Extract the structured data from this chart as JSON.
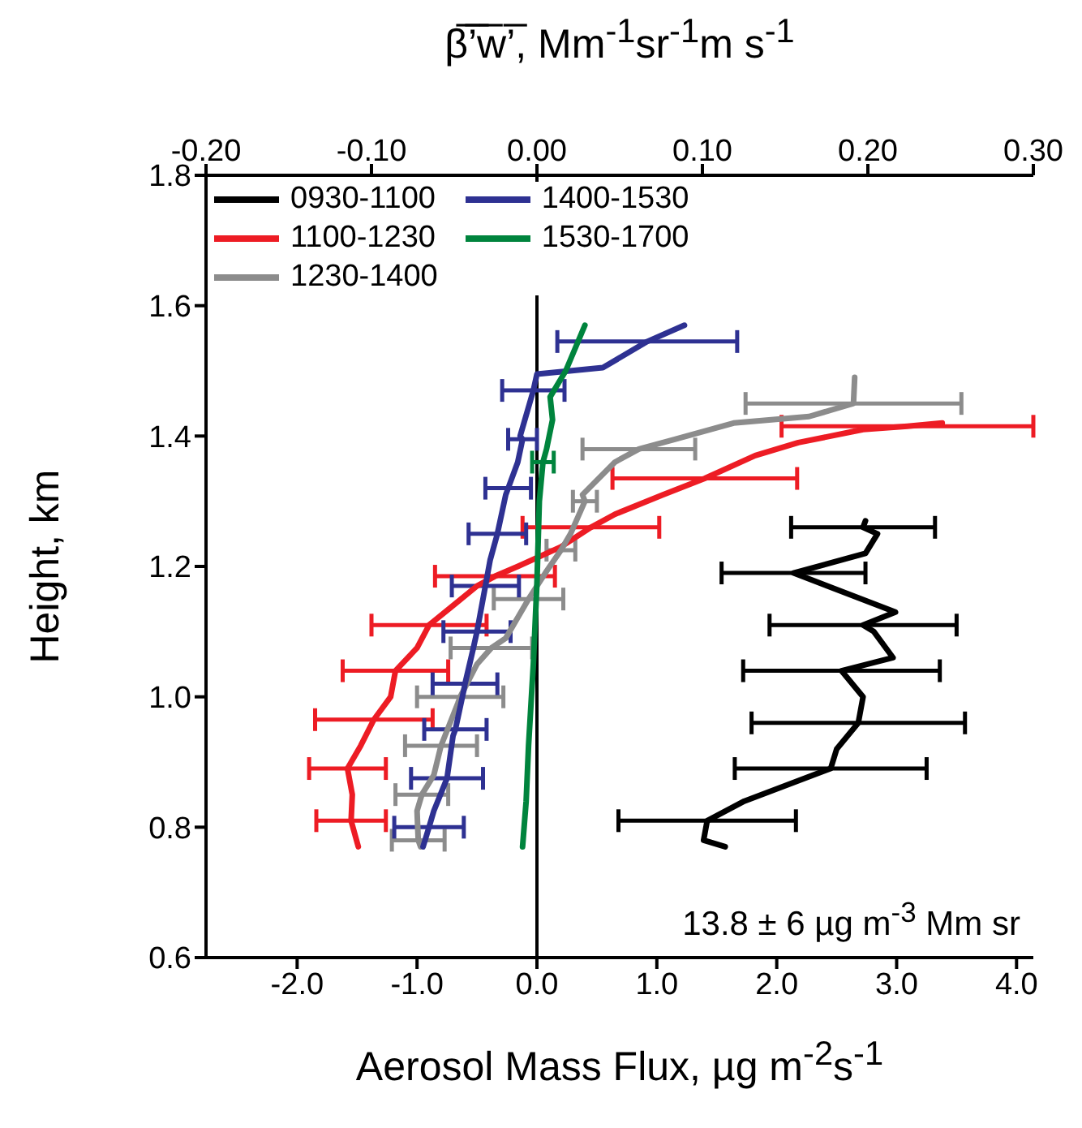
{
  "chart_data": {
    "type": "line",
    "xlabel": "Aerosol Mass Flux, µg m$^{-2}$s$^{-1}$",
    "x2label": "β̅’̅w̅’̅, Mm$^{-1}$sr$^{-1}$m s$^{-1}$",
    "ylabel": "Height, km",
    "annotations": [
      "13.8 ± 6 µg m$^{-3}$ Mm sr"
    ],
    "xlim": [
      -2.76,
      4.14
    ],
    "xticks": [
      {
        "value": -2,
        "label": "-2.0"
      },
      {
        "value": -1,
        "label": "-1.0"
      },
      {
        "value": 0,
        "label": "0.0"
      },
      {
        "value": 1,
        "label": "1.0"
      },
      {
        "value": 2,
        "label": "2.0"
      },
      {
        "value": 3,
        "label": "3.0"
      },
      {
        "value": 4,
        "label": "4.0"
      }
    ],
    "x2lim": [
      -0.2,
      0.3
    ],
    "x2ticks": [
      {
        "value": -0.2,
        "label": "-0.20"
      },
      {
        "value": -0.1,
        "label": "-0.10"
      },
      {
        "value": 0,
        "label": "0.00"
      },
      {
        "value": 0.1,
        "label": "0.10"
      },
      {
        "value": 0.2,
        "label": "0.20"
      },
      {
        "value": 0.3,
        "label": "0.30"
      }
    ],
    "ylim": [
      0.6,
      1.8
    ],
    "yticks": [
      {
        "value": 0.6,
        "label": "0.6"
      },
      {
        "value": 0.8,
        "label": "0.8"
      },
      {
        "value": 1,
        "label": "1.0"
      },
      {
        "value": 1.2,
        "label": "1.2"
      },
      {
        "value": 1.4,
        "label": "1.4"
      },
      {
        "value": 1.6,
        "label": "1.6"
      },
      {
        "value": 1.8,
        "label": "1.8"
      }
    ],
    "ref_lines": [
      {
        "axis": "x",
        "value": 0,
        "color": "#000000"
      }
    ],
    "grid": false,
    "legend": "top left",
    "marker": "none",
    "line_style": "solid",
    "series": [
      {
        "name": "0930-1100",
        "color": "#000000",
        "values": [
          0.77,
          0.78,
          0.81,
          0.84,
          0.89,
          0.92,
          0.96,
          1.0,
          1.04,
          1.06,
          1.1,
          1.11,
          1.13,
          1.19,
          1.22,
          1.25,
          1.26,
          1.27
        ],
        "x": [
          1.57,
          1.39,
          1.42,
          1.73,
          2.45,
          2.5,
          2.68,
          2.72,
          2.54,
          2.97,
          2.81,
          2.72,
          2.99,
          2.14,
          2.74,
          2.84,
          2.72,
          2.74
        ],
        "xerrors": [
          null,
          null,
          0.74,
          null,
          0.8,
          null,
          0.89,
          null,
          0.82,
          null,
          null,
          0.78,
          null,
          0.6,
          null,
          null,
          0.6,
          null
        ]
      },
      {
        "name": "1100-1230",
        "color": "#ed1c24",
        "values": [
          0.77,
          0.81,
          0.85,
          0.89,
          0.925,
          0.965,
          1.0,
          1.04,
          1.075,
          1.11,
          1.14,
          1.17,
          1.185,
          1.2,
          1.23,
          1.26,
          1.28,
          1.31,
          1.335,
          1.37,
          1.39,
          1.41,
          1.415,
          1.42
        ],
        "x": [
          -1.49,
          -1.55,
          -1.54,
          -1.58,
          -1.47,
          -1.36,
          -1.22,
          -1.18,
          -1.0,
          -0.9,
          -0.7,
          -0.5,
          -0.35,
          -0.16,
          0.2,
          0.45,
          0.65,
          1.05,
          1.4,
          1.82,
          2.18,
          2.72,
          3.09,
          3.38
        ],
        "xerrors": [
          null,
          0.29,
          null,
          0.32,
          null,
          0.49,
          null,
          0.44,
          null,
          0.48,
          null,
          null,
          0.5,
          null,
          null,
          0.57,
          null,
          null,
          0.77,
          null,
          null,
          null,
          1.05,
          null
        ]
      },
      {
        "name": "1230-1400",
        "color": "#8c8c8c",
        "values": [
          0.77,
          0.78,
          0.825,
          0.85,
          0.88,
          0.925,
          0.99,
          1.0,
          1.05,
          1.075,
          1.09,
          1.15,
          1.19,
          1.225,
          1.25,
          1.3,
          1.31,
          1.36,
          1.38,
          1.395,
          1.42,
          1.43,
          1.45,
          1.49
        ],
        "x": [
          -0.97,
          -0.99,
          -1.0,
          -0.96,
          -0.86,
          -0.8,
          -0.66,
          -0.64,
          -0.5,
          -0.38,
          -0.26,
          -0.07,
          0.07,
          0.2,
          0.28,
          0.4,
          0.38,
          0.65,
          0.85,
          1.15,
          1.64,
          2.27,
          2.64,
          2.65
        ],
        "xerrors": [
          null,
          0.22,
          null,
          0.22,
          null,
          0.3,
          null,
          0.36,
          null,
          0.34,
          null,
          0.29,
          null,
          0.12,
          null,
          0.1,
          null,
          null,
          0.47,
          null,
          null,
          null,
          0.9,
          null
        ]
      },
      {
        "name": "1400-1530",
        "color": "#2e3192",
        "values": [
          0.77,
          0.8,
          0.825,
          0.875,
          0.94,
          0.95,
          1.01,
          1.02,
          1.075,
          1.1,
          1.14,
          1.17,
          1.21,
          1.25,
          1.31,
          1.32,
          1.36,
          1.395,
          1.4,
          1.47,
          1.495,
          1.505,
          1.545,
          1.57
        ],
        "x": [
          -0.95,
          -0.9,
          -0.86,
          -0.75,
          -0.7,
          -0.68,
          -0.61,
          -0.6,
          -0.53,
          -0.5,
          -0.46,
          -0.43,
          -0.39,
          -0.33,
          -0.26,
          -0.24,
          -0.16,
          -0.12,
          -0.14,
          -0.03,
          0.0,
          0.55,
          0.92,
          1.23
        ],
        "xerrors": [
          null,
          0.29,
          null,
          0.3,
          null,
          0.26,
          null,
          0.27,
          null,
          0.28,
          null,
          0.28,
          null,
          0.24,
          null,
          0.19,
          null,
          0.12,
          null,
          0.26,
          null,
          null,
          0.75,
          null
        ]
      },
      {
        "name": "1530-1700",
        "color": "#00843d",
        "values": [
          0.77,
          0.84,
          0.925,
          1.05,
          1.175,
          1.3,
          1.36,
          1.38,
          1.425,
          1.46,
          1.5,
          1.57
        ],
        "x": [
          -0.12,
          -0.09,
          -0.07,
          -0.03,
          0.0,
          0.02,
          0.05,
          0.08,
          0.13,
          0.11,
          0.24,
          0.4
        ],
        "xerrors": [
          null,
          null,
          null,
          null,
          null,
          null,
          0.09,
          null,
          null,
          null,
          null,
          null
        ]
      }
    ]
  }
}
